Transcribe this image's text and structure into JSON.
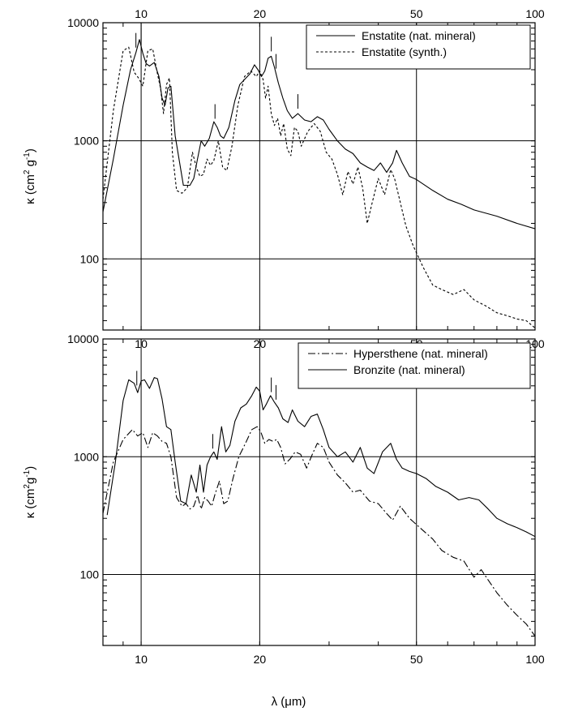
{
  "chart_data": [
    {
      "type": "line",
      "title": "",
      "xscale": "log",
      "yscale": "log",
      "xlim": [
        8,
        100
      ],
      "ylim": [
        25,
        10000
      ],
      "grid": true,
      "legend_position": "top-right",
      "xlabel": "",
      "ylabel": "κ (cm² g⁻¹)",
      "ylabel_parts": {
        "base": "κ (cm",
        "sup1": "2",
        "mid": " g",
        "sup2": "-1",
        "end": ")"
      },
      "xtick_labels": [
        "10",
        "20",
        "50",
        "100"
      ],
      "xtick_values": [
        10,
        20,
        50,
        100
      ],
      "ytick_labels": [
        "100",
        "1000",
        "10000"
      ],
      "ytick_values": [
        100,
        1000,
        10000
      ],
      "band_markers_um": [
        9.7,
        10.0,
        15.4,
        21.4,
        22.0,
        25.0
      ],
      "series": [
        {
          "name": "Enstatite (nat. mineral)",
          "style": "solid",
          "x": [
            8.0,
            8.5,
            9.0,
            9.4,
            9.7,
            9.9,
            10.1,
            10.3,
            10.5,
            10.8,
            11.1,
            11.3,
            11.5,
            11.7,
            11.9,
            12.2,
            12.8,
            13.3,
            13.6,
            13.9,
            14.2,
            14.5,
            14.9,
            15.3,
            15.6,
            15.9,
            16.2,
            16.7,
            17.3,
            17.8,
            18.3,
            18.9,
            19.4,
            19.8,
            20.2,
            20.6,
            21.0,
            21.4,
            21.8,
            22.3,
            22.9,
            23.5,
            24.2,
            25.0,
            26.0,
            27.0,
            28.0,
            29.0,
            30.0,
            31.5,
            33.0,
            34.5,
            36.0,
            37.5,
            39.0,
            40.5,
            42.0,
            43.5,
            44.5,
            46.0,
            48.0,
            50.0,
            55.0,
            60.0,
            65.0,
            70.0,
            80.0,
            90.0,
            100.0
          ],
          "y": [
            250,
            700,
            2000,
            4000,
            5600,
            7200,
            5500,
            4500,
            4300,
            4600,
            3500,
            2300,
            2000,
            2800,
            2900,
            1100,
            420,
            420,
            480,
            700,
            1000,
            900,
            1050,
            1450,
            1300,
            1100,
            1050,
            1300,
            2200,
            3000,
            3300,
            3700,
            4400,
            4000,
            3500,
            3900,
            5000,
            5200,
            4200,
            3100,
            2300,
            1800,
            1550,
            1700,
            1500,
            1450,
            1600,
            1500,
            1250,
            1000,
            850,
            780,
            650,
            600,
            560,
            650,
            540,
            650,
            830,
            650,
            500,
            470,
            380,
            320,
            290,
            260,
            230,
            200,
            180
          ]
        },
        {
          "name": "Enstatite (synth.)",
          "style": "dotted",
          "x": [
            8.0,
            8.5,
            9.0,
            9.3,
            9.6,
            9.85,
            10.1,
            10.4,
            10.7,
            11.0,
            11.2,
            11.4,
            11.6,
            11.8,
            12.0,
            12.3,
            12.7,
            13.1,
            13.5,
            13.8,
            14.1,
            14.4,
            14.7,
            15.0,
            15.3,
            15.7,
            16.1,
            16.5,
            17.0,
            17.6,
            18.3,
            19.0,
            19.6,
            20.0,
            20.4,
            20.7,
            21.0,
            21.4,
            21.8,
            22.2,
            22.6,
            23.0,
            23.5,
            24.0,
            24.5,
            25.0,
            25.5,
            26.5,
            27.5,
            28.5,
            29.5,
            30.5,
            31.5,
            32.5,
            33.5,
            34.5,
            35.5,
            36.5,
            37.5,
            38.5,
            40.0,
            41.5,
            43.0,
            44.0,
            45.5,
            47.0,
            49.0,
            52.0,
            55.0,
            58.0,
            62.0,
            66.0,
            70.0,
            75.0,
            80.0,
            85.0,
            90.0,
            95.0,
            100.0
          ],
          "y": [
            320,
            1800,
            5800,
            6200,
            3800,
            3400,
            2900,
            5800,
            6000,
            3700,
            2800,
            1700,
            3000,
            3400,
            800,
            380,
            360,
            400,
            800,
            600,
            500,
            520,
            700,
            620,
            680,
            1000,
            600,
            560,
            900,
            2000,
            3500,
            3900,
            3500,
            3900,
            3300,
            2300,
            2900,
            1700,
            1350,
            1550,
            1100,
            1400,
            850,
            750,
            1300,
            1200,
            900,
            1200,
            1400,
            1200,
            800,
            700,
            520,
            350,
            550,
            430,
            600,
            400,
            200,
            290,
            480,
            350,
            570,
            480,
            300,
            190,
            130,
            85,
            60,
            55,
            50,
            55,
            45,
            40,
            35,
            33,
            31,
            30,
            26
          ]
        }
      ]
    },
    {
      "type": "line",
      "title": "",
      "xscale": "log",
      "yscale": "log",
      "xlim": [
        8,
        100
      ],
      "ylim": [
        25,
        10000
      ],
      "grid": true,
      "legend_position": "top-right",
      "xlabel": "λ (μm)",
      "ylabel": "κ (cm² g⁻¹)",
      "ylabel_parts": {
        "base": "κ (cm",
        "sup1": "2",
        "mid": "g",
        "sup2": "-1",
        "end": ")"
      },
      "xtick_labels": [
        "10",
        "20",
        "50",
        "100"
      ],
      "xtick_values": [
        10,
        20,
        50,
        100
      ],
      "ytick_labels": [
        "100",
        "1000",
        "10000"
      ],
      "ytick_values": [
        100,
        1000,
        10000
      ],
      "band_markers_um": [
        9.75,
        15.2,
        21.4,
        22.0
      ],
      "series": [
        {
          "name": "Hypersthene (nat. mineral)",
          "style": "dash-dot",
          "x": [
            8.0,
            8.5,
            9.0,
            9.5,
            9.8,
            10.1,
            10.4,
            10.7,
            11.0,
            11.3,
            11.6,
            11.9,
            12.3,
            12.7,
            13.0,
            13.3,
            13.6,
            13.9,
            14.2,
            14.5,
            14.8,
            15.1,
            15.4,
            15.8,
            16.2,
            16.6,
            17.1,
            17.7,
            18.4,
            19.1,
            19.7,
            20.1,
            20.6,
            21.1,
            21.6,
            22.1,
            22.6,
            23.2,
            23.9,
            24.6,
            25.4,
            26.3,
            27.2,
            28.0,
            29.0,
            30.0,
            31.5,
            33.0,
            34.5,
            36.0,
            38.0,
            40.0,
            42.0,
            43.5,
            45.5,
            48.0,
            51.0,
            55.0,
            58.0,
            62.0,
            66.0,
            70.0,
            73.0,
            76.0,
            80.0,
            85.0,
            90.0,
            95.0,
            100.0
          ],
          "y": [
            330,
            900,
            1400,
            1700,
            1500,
            1600,
            1200,
            1600,
            1500,
            1350,
            1300,
            1000,
            450,
            380,
            400,
            360,
            380,
            470,
            360,
            450,
            420,
            380,
            480,
            620,
            400,
            420,
            650,
            1000,
            1300,
            1700,
            1800,
            1650,
            1300,
            1400,
            1350,
            1400,
            1200,
            870,
            960,
            1100,
            1050,
            800,
            1050,
            1300,
            1200,
            900,
            700,
            600,
            500,
            520,
            420,
            400,
            330,
            290,
            380,
            300,
            250,
            200,
            160,
            140,
            130,
            95,
            110,
            90,
            70,
            55,
            45,
            38,
            30
          ]
        },
        {
          "name": "Bronzite (nat. mineral)",
          "style": "solid",
          "x": [
            8.2,
            8.6,
            9.0,
            9.3,
            9.6,
            9.8,
            10.0,
            10.2,
            10.5,
            10.8,
            11.0,
            11.3,
            11.6,
            11.9,
            12.2,
            12.6,
            13.0,
            13.4,
            13.8,
            14.1,
            14.4,
            14.7,
            15.0,
            15.3,
            15.6,
            16.0,
            16.4,
            16.8,
            17.3,
            17.9,
            18.5,
            19.1,
            19.6,
            20.0,
            20.4,
            20.8,
            21.3,
            21.8,
            22.3,
            22.9,
            23.6,
            24.2,
            25.0,
            26.0,
            27.0,
            28.0,
            29.0,
            30.0,
            31.5,
            33.0,
            34.5,
            36.0,
            37.5,
            39.0,
            41.0,
            43.0,
            44.5,
            46.0,
            48.0,
            50.0,
            53.0,
            56.0,
            60.0,
            64.0,
            68.0,
            72.0,
            76.0,
            80.0,
            85.0,
            90.0,
            95.0,
            100.0
          ],
          "y": [
            320,
            900,
            3000,
            4500,
            4200,
            3500,
            4400,
            4500,
            3800,
            4700,
            4600,
            3100,
            1800,
            1700,
            900,
            420,
            400,
            700,
            500,
            850,
            500,
            850,
            1000,
            1100,
            950,
            1800,
            1100,
            1250,
            2000,
            2600,
            2800,
            3300,
            3900,
            3600,
            2500,
            2800,
            3300,
            2900,
            2600,
            2100,
            1950,
            2500,
            2000,
            1800,
            2200,
            2300,
            1700,
            1200,
            1000,
            1100,
            900,
            1200,
            800,
            720,
            1100,
            1300,
            950,
            800,
            750,
            720,
            650,
            560,
            500,
            430,
            450,
            430,
            360,
            300,
            270,
            250,
            230,
            210
          ]
        }
      ]
    }
  ]
}
